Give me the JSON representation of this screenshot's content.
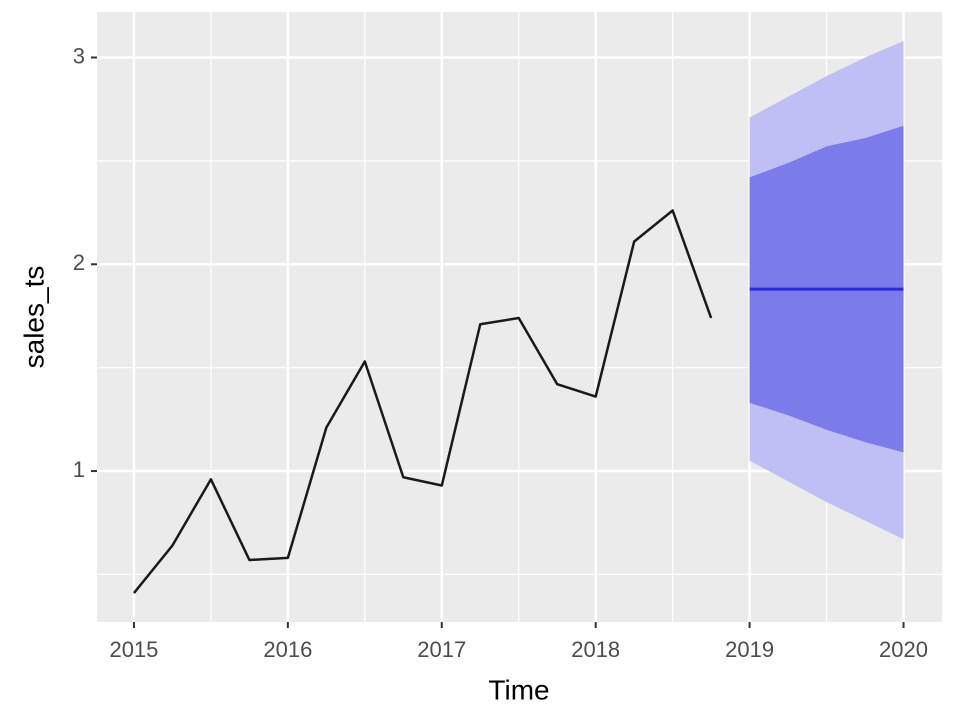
{
  "chart_data": {
    "type": "forecast",
    "x_label": "Time",
    "y_label": "sales_ts",
    "xlim": [
      2014.76,
      2020.25
    ],
    "ylim": [
      0.27,
      3.22
    ],
    "xticks": [
      2015,
      2016,
      2017,
      2018,
      2019,
      2020
    ],
    "yticks": [
      1,
      2,
      3
    ],
    "grid": true,
    "series": [
      {
        "color": "#1a1a1a",
        "x": [
          2015,
          2015.25,
          2015.5,
          2015.75,
          2016,
          2016.25,
          2016.5,
          2016.75,
          2017,
          2017.25,
          2017.5,
          2017.75,
          2018,
          2018.25,
          2018.5,
          2018.75
        ],
        "values": [
          0.41,
          0.64,
          0.96,
          0.57,
          0.58,
          1.21,
          1.53,
          0.97,
          0.93,
          1.71,
          1.74,
          1.42,
          1.36,
          2.11,
          2.26,
          1.74
        ]
      }
    ],
    "forecast": {
      "x": [
        2019,
        2019.25,
        2019.5,
        2019.75,
        2020
      ],
      "mean": [
        1.88,
        1.88,
        1.88,
        1.88,
        1.88
      ],
      "lo80": [
        1.33,
        1.27,
        1.2,
        1.14,
        1.09
      ],
      "hi80": [
        2.42,
        2.49,
        2.57,
        2.61,
        2.67
      ],
      "lo95": [
        1.05,
        0.95,
        0.85,
        0.76,
        0.67
      ],
      "hi95": [
        2.71,
        2.81,
        2.91,
        3.0,
        3.08
      ],
      "mean_color": "#2b2bd9",
      "color80": "#7b7bea",
      "color95": "#bfbff5"
    }
  }
}
